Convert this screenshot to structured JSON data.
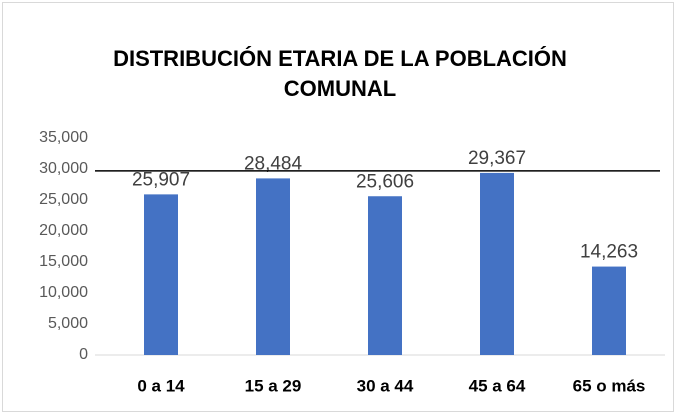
{
  "chart_data": {
    "type": "bar",
    "title": "DISTRIBUCIÓN ETARIA DE LA POBLACIÓN COMUNAL",
    "categories": [
      "0 a 14",
      "15 a 29",
      "30 a 44",
      "45 a 64",
      "65 o más"
    ],
    "values": [
      25907,
      28484,
      25606,
      29367,
      14263
    ],
    "value_labels": [
      "25,907",
      "28,484",
      "25,606",
      "29,367",
      "14,263"
    ],
    "color": "#4472c4",
    "ylim": [
      0,
      35000
    ],
    "yticks": [
      0,
      {
        "value": 5000,
        "label": "5,000"
      },
      {
        "value": 10000,
        "label": "10,000"
      },
      {
        "value": 15000,
        "label": "15,000"
      },
      {
        "value": 20000,
        "label": "20,000"
      },
      {
        "value": 25000,
        "label": "25,000"
      },
      {
        "value": 30000,
        "label": "30,000"
      },
      {
        "value": 35000,
        "label": "35,000"
      }
    ],
    "reference_line": 29700,
    "grid": false
  }
}
